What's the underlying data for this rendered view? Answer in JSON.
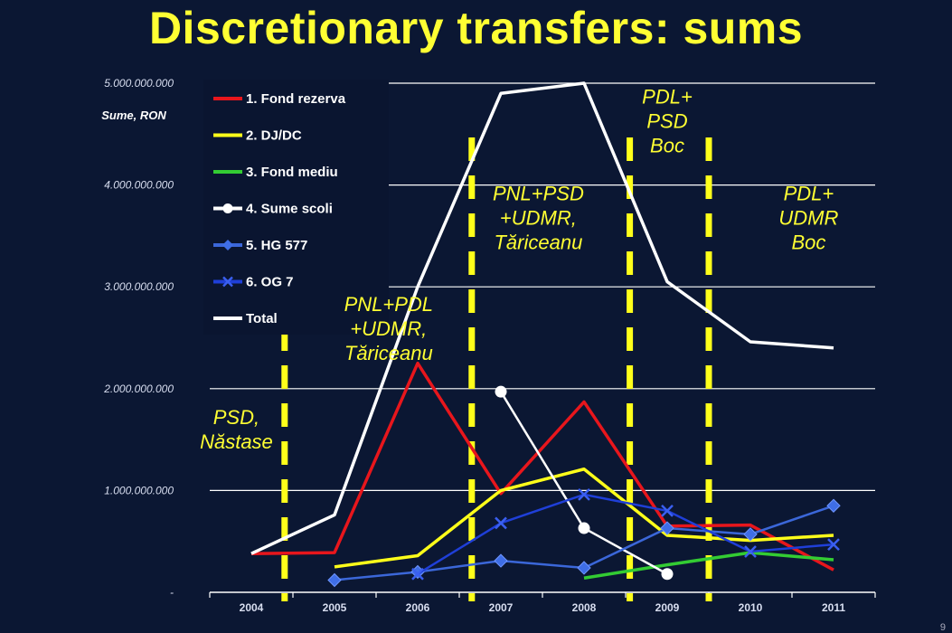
{
  "title": "Discretionary transfers: sums",
  "page_number": "9",
  "chart_data": {
    "type": "line",
    "ylabel": "Sume, RON",
    "ylim": [
      0,
      5000000000
    ],
    "y_ticks": [
      {
        "value": 0,
        "label": "-"
      },
      {
        "value": 1000000000,
        "label": "1.000.000.000"
      },
      {
        "value": 2000000000,
        "label": "2.000.000.000"
      },
      {
        "value": 3000000000,
        "label": "3.000.000.000"
      },
      {
        "value": 4000000000,
        "label": "4.000.000.000"
      },
      {
        "value": 5000000000,
        "label": "5.000.000.000"
      }
    ],
    "categories": [
      "2004",
      "2005",
      "2006",
      "2007",
      "2008",
      "2009",
      "2010",
      "2011"
    ],
    "grid": true,
    "legend_position": "top-left",
    "series": [
      {
        "name": "1. Fond rezerva",
        "color": "#e8161c",
        "marker": "none",
        "values": [
          380000000,
          390000000,
          2250000000,
          970000000,
          1870000000,
          650000000,
          660000000,
          220000000
        ]
      },
      {
        "name": "2. DJ/DC",
        "color": "#ffff1a",
        "marker": "none",
        "values": [
          null,
          250000000,
          360000000,
          1000000000,
          1210000000,
          560000000,
          510000000,
          560000000
        ]
      },
      {
        "name": "3. Fond mediu",
        "color": "#33cc33",
        "marker": "none",
        "values": [
          null,
          null,
          null,
          null,
          140000000,
          270000000,
          390000000,
          320000000
        ]
      },
      {
        "name": "4. Sume scoli",
        "color": "#ffffff",
        "marker": "circle",
        "values": [
          null,
          null,
          null,
          1970000000,
          630000000,
          180000000,
          null,
          null
        ]
      },
      {
        "name": "5. HG 577",
        "color": "#3b67d9",
        "marker": "diamond",
        "values": [
          null,
          120000000,
          200000000,
          310000000,
          240000000,
          630000000,
          570000000,
          850000000
        ]
      },
      {
        "name": "6. OG 7",
        "color": "#1f3fd8",
        "marker": "x",
        "values": [
          null,
          null,
          180000000,
          680000000,
          960000000,
          800000000,
          400000000,
          470000000
        ]
      },
      {
        "name": "Total",
        "color": "#ffffff",
        "marker": "none",
        "values": [
          380000000,
          760000000,
          3000000000,
          4900000000,
          5000000000,
          3050000000,
          2460000000,
          2400000000
        ]
      }
    ],
    "boundaries": [
      {
        "at": 0.4
      },
      {
        "at": 2.65
      },
      {
        "at": 4.55
      },
      {
        "at": 5.5
      }
    ],
    "annotations": [
      {
        "lines": [
          "PSD,",
          "Năstase"
        ],
        "x": -0.18,
        "y_value": 1650000000
      },
      {
        "lines": [
          "PNL+PDL",
          "+UDMR,",
          "Tăriceanu"
        ],
        "x": 1.65,
        "y_value": 2760000000
      },
      {
        "lines": [
          "PNL+PSD",
          "+UDMR,",
          "Tăriceanu"
        ],
        "x": 3.45,
        "y_value": 3850000000
      },
      {
        "lines": [
          "PDL+",
          "PSD",
          "Boc"
        ],
        "x": 5.0,
        "y_value": 4800000000
      },
      {
        "lines": [
          "PDL+",
          "UDMR",
          "Boc"
        ],
        "x": 6.7,
        "y_value": 3850000000
      }
    ]
  }
}
